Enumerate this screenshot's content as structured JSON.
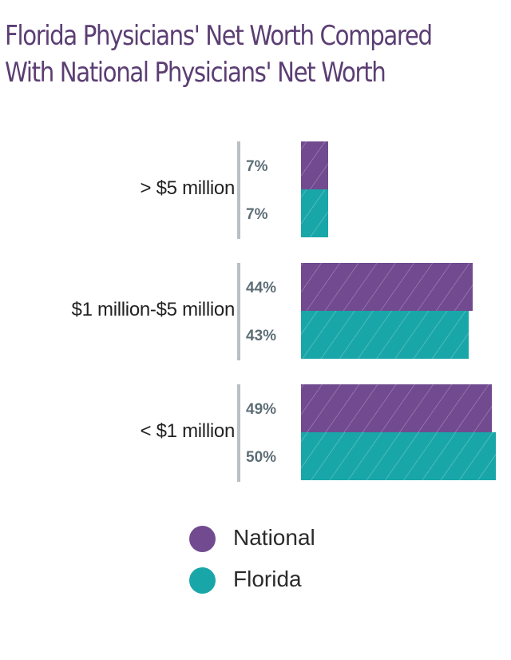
{
  "title": {
    "line1": "Florida Physicians' Net Worth Compared",
    "line2": "With National Physicians' Net Worth"
  },
  "colors": {
    "title": "#5b3e73",
    "national": "#714a8f",
    "florida": "#19a6a8",
    "divider": "#b9bfc3",
    "value_text": "#5e6e77"
  },
  "groups": [
    {
      "label": "> $5 million",
      "national": {
        "value": 7,
        "text": "7%"
      },
      "florida": {
        "value": 7,
        "text": "7%"
      }
    },
    {
      "label": "$1 million-$5 million",
      "national": {
        "value": 44,
        "text": "44%"
      },
      "florida": {
        "value": 43,
        "text": "43%"
      }
    },
    {
      "label": "< $1 million",
      "national": {
        "value": 49,
        "text": "49%"
      },
      "florida": {
        "value": 50,
        "text": "50%"
      }
    }
  ],
  "legend": [
    {
      "label": "National",
      "color": "#714a8f"
    },
    {
      "label": "Florida",
      "color": "#19a6a8"
    }
  ],
  "chart_data": {
    "type": "bar",
    "orientation": "horizontal",
    "title": "Florida Physicians' Net Worth Compared With National Physicians' Net Worth",
    "categories": [
      "> $5 million",
      "$1 million-$5 million",
      "< $1 million"
    ],
    "series": [
      {
        "name": "National",
        "values": [
          7,
          44,
          49
        ],
        "color": "#714a8f"
      },
      {
        "name": "Florida",
        "values": [
          7,
          43,
          50
        ],
        "color": "#19a6a8"
      }
    ],
    "unit": "%",
    "xlabel": "",
    "ylabel": "",
    "grid": false,
    "data_labels": true,
    "legend_position": "bottom"
  }
}
